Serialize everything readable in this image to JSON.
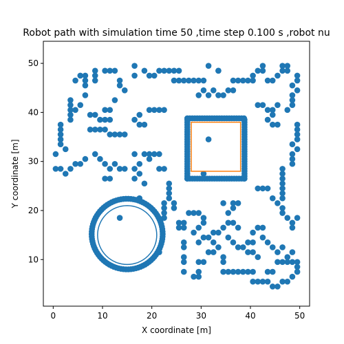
{
  "chart_data": {
    "type": "scatter",
    "title": "Robot path with simulation time 50 ,time step 0.100 s ,robot nu",
    "xlabel": "X coordinate [m]",
    "ylabel": "Y coordinate [m]",
    "xlim": [
      -2,
      52
    ],
    "ylim": [
      0.5,
      54.5
    ],
    "x_ticks": [
      0,
      10,
      20,
      30,
      40,
      50
    ],
    "y_ticks": [
      10,
      20,
      30,
      40,
      50
    ],
    "grid": false,
    "colors": {
      "obstacles": "#1f77b4",
      "path": "#1f77b4",
      "target": "#ff7f0e"
    },
    "series": [
      {
        "kind": "scatter",
        "points": [
          [
            0.5,
            28.5
          ],
          [
            1.5,
            28.5
          ],
          [
            2.5,
            27.5
          ],
          [
            3.5,
            28.5
          ],
          [
            4.5,
            29.5
          ],
          [
            5.5,
            29.5
          ],
          [
            6.5,
            30.5
          ],
          [
            0.5,
            31.5
          ],
          [
            2.5,
            32.5
          ],
          [
            1.5,
            33.5
          ],
          [
            1.5,
            34.5
          ],
          [
            1.5,
            35.5
          ],
          [
            1.5,
            36.5
          ],
          [
            1.5,
            37.5
          ],
          [
            3.5,
            42.5
          ],
          [
            3.5,
            41.5
          ],
          [
            3.5,
            40.5
          ],
          [
            3.5,
            39.5
          ],
          [
            3.5,
            38.5
          ],
          [
            4.5,
            40.5
          ],
          [
            5.5,
            41.5
          ],
          [
            6.5,
            43.5
          ],
          [
            4.5,
            46.5
          ],
          [
            5.5,
            47.5
          ],
          [
            6.5,
            46.5
          ],
          [
            6.5,
            47.5
          ],
          [
            6.5,
            45.5
          ],
          [
            8.5,
            46.5
          ],
          [
            8.5,
            47.5
          ],
          [
            8.5,
            48.5
          ],
          [
            10.5,
            48.5
          ],
          [
            11.5,
            48.5
          ],
          [
            12.5,
            48.5
          ],
          [
            13.5,
            46.5
          ],
          [
            13.5,
            45.5
          ],
          [
            14.5,
            44.5
          ],
          [
            16.5,
            47.5
          ],
          [
            16.5,
            49.5
          ],
          [
            18.5,
            48.5
          ],
          [
            19.5,
            47.5
          ],
          [
            20.5,
            47.5
          ],
          [
            21.5,
            48.5
          ],
          [
            22.5,
            48.5
          ],
          [
            23.5,
            48.5
          ],
          [
            24.5,
            48.5
          ],
          [
            25.5,
            48.5
          ],
          [
            24.5,
            46.5
          ],
          [
            25.5,
            46.5
          ],
          [
            26.5,
            46.5
          ],
          [
            27.5,
            46.5
          ],
          [
            28.5,
            46.5
          ],
          [
            29.5,
            46.5
          ],
          [
            30.5,
            46.5
          ],
          [
            29.5,
            43.5
          ],
          [
            30.5,
            44.5
          ],
          [
            31.5,
            43.5
          ],
          [
            31.5,
            49.5
          ],
          [
            33.5,
            48.5
          ],
          [
            33.5,
            48.5
          ],
          [
            32.5,
            44.5
          ],
          [
            33.5,
            43.5
          ],
          [
            34.5,
            43.5
          ],
          [
            35.5,
            44.5
          ],
          [
            36.5,
            44.5
          ],
          [
            36.5,
            46.5
          ],
          [
            37.5,
            46.5
          ],
          [
            38.5,
            46.5
          ],
          [
            39.5,
            46.5
          ],
          [
            40.5,
            46.5
          ],
          [
            40.5,
            47.5
          ],
          [
            41.5,
            48.5
          ],
          [
            42.5,
            49.5
          ],
          [
            42.5,
            48.5
          ],
          [
            43.5,
            46.5
          ],
          [
            44.5,
            46.5
          ],
          [
            45.5,
            47.5
          ],
          [
            46.5,
            48.5
          ],
          [
            46.5,
            49.5
          ],
          [
            47.5,
            48.5
          ],
          [
            47.5,
            49.5
          ],
          [
            48.5,
            45.5
          ],
          [
            49.5,
            47.5
          ],
          [
            49.5,
            46.5
          ],
          [
            49.5,
            44.5
          ],
          [
            48.5,
            43.5
          ],
          [
            48.5,
            42.5
          ],
          [
            48.5,
            41.5
          ],
          [
            47.5,
            40.5
          ],
          [
            45.5,
            41.5
          ],
          [
            44.5,
            40.5
          ],
          [
            41.5,
            41.5
          ],
          [
            42.5,
            41.5
          ],
          [
            43.5,
            40.5
          ],
          [
            10.5,
            40.5
          ],
          [
            11.5,
            40.5
          ],
          [
            12.5,
            42.5
          ],
          [
            7.5,
            39.5
          ],
          [
            8.5,
            39.5
          ],
          [
            9.5,
            38.5
          ],
          [
            10.5,
            38.5
          ],
          [
            11.5,
            38.5
          ],
          [
            7.5,
            36.5
          ],
          [
            8.5,
            36.5
          ],
          [
            9.5,
            36.5
          ],
          [
            10.5,
            36.5
          ],
          [
            11.5,
            35.5
          ],
          [
            12.5,
            35.5
          ],
          [
            13.5,
            35.5
          ],
          [
            14.5,
            35.5
          ],
          [
            16.5,
            38.5
          ],
          [
            17.5,
            37.5
          ],
          [
            18.5,
            37.5
          ],
          [
            17.5,
            39.5
          ],
          [
            19.5,
            40.5
          ],
          [
            20.5,
            40.5
          ],
          [
            21.5,
            40.5
          ],
          [
            22.5,
            40.5
          ],
          [
            18.5,
            31.5
          ],
          [
            19.5,
            31.5
          ],
          [
            20.5,
            31.5
          ],
          [
            21.5,
            31.5
          ],
          [
            19.5,
            30.5
          ],
          [
            17.5,
            29.5
          ],
          [
            16.5,
            28.5
          ],
          [
            17.5,
            27.5
          ],
          [
            16.5,
            26.5
          ],
          [
            18.5,
            25.5
          ],
          [
            21.5,
            28.5
          ],
          [
            22.5,
            28.5
          ],
          [
            8.5,
            31.5
          ],
          [
            9.5,
            30.5
          ],
          [
            10.5,
            29.5
          ],
          [
            11.5,
            28.5
          ],
          [
            12.5,
            29.5
          ],
          [
            13.5,
            28.5
          ],
          [
            10.5,
            26.5
          ],
          [
            11.5,
            26.5
          ],
          [
            14.5,
            28.5
          ],
          [
            23.5,
            25.5
          ],
          [
            23.5,
            24.5
          ],
          [
            23.5,
            23.5
          ],
          [
            23.5,
            22.5
          ],
          [
            22.5,
            21.5
          ],
          [
            22.5,
            20.5
          ],
          [
            22.5,
            19.5
          ],
          [
            22.5,
            18.5
          ],
          [
            24.5,
            21.5
          ],
          [
            24.5,
            20.5
          ],
          [
            25.5,
            17.5
          ],
          [
            25.5,
            16.5
          ],
          [
            26.5,
            17.5
          ],
          [
            26.5,
            16.5
          ],
          [
            26.5,
            13.5
          ],
          [
            26.5,
            12.5
          ],
          [
            26.5,
            10.5
          ],
          [
            26.5,
            9.5
          ],
          [
            26.5,
            7.5
          ],
          [
            27.5,
            19.5
          ],
          [
            28.5,
            19.5
          ],
          [
            29.5,
            19.5
          ],
          [
            30.5,
            18.5
          ],
          [
            30.5,
            17.5
          ],
          [
            29.5,
            16.5
          ],
          [
            28.5,
            15.5
          ],
          [
            29.5,
            13.5
          ],
          [
            30.5,
            14.5
          ],
          [
            31.5,
            14.5
          ],
          [
            29.5,
            9.5
          ],
          [
            30.5,
            9.5
          ],
          [
            29.5,
            7.5
          ],
          [
            28.5,
            6.5
          ],
          [
            29.5,
            6.5
          ],
          [
            31.5,
            11.5
          ],
          [
            32.5,
            11.5
          ],
          [
            33.5,
            12.5
          ],
          [
            32.5,
            13.5
          ],
          [
            32.5,
            15.5
          ],
          [
            33.5,
            15.5
          ],
          [
            34.5,
            16.5
          ],
          [
            35.5,
            17.5
          ],
          [
            36.5,
            17.5
          ],
          [
            37.5,
            16.5
          ],
          [
            35.5,
            14.5
          ],
          [
            36.5,
            13.5
          ],
          [
            37.5,
            12.5
          ],
          [
            38.5,
            12.5
          ],
          [
            39.5,
            13.5
          ],
          [
            34.5,
            10.5
          ],
          [
            34.5,
            9.5
          ],
          [
            34.5,
            21.5
          ],
          [
            36.5,
            21.5
          ],
          [
            37.5,
            21.5
          ],
          [
            35.5,
            19.5
          ],
          [
            36.5,
            20.5
          ],
          [
            34.5,
            7.5
          ],
          [
            35.5,
            7.5
          ],
          [
            36.5,
            7.5
          ],
          [
            37.5,
            7.5
          ],
          [
            38.5,
            7.5
          ],
          [
            39.5,
            7.5
          ],
          [
            40.5,
            7.5
          ],
          [
            39.5,
            11.5
          ],
          [
            40.5,
            11.5
          ],
          [
            41.5,
            10.5
          ],
          [
            40.5,
            13.5
          ],
          [
            40.5,
            15.5
          ],
          [
            41.5,
            16.5
          ],
          [
            42.5,
            16.5
          ],
          [
            42.5,
            14.5
          ],
          [
            43.5,
            13.5
          ],
          [
            44.5,
            12.5
          ],
          [
            45.5,
            11.5
          ],
          [
            46.5,
            12.5
          ],
          [
            45.5,
            9.5
          ],
          [
            46.5,
            9.5
          ],
          [
            47.5,
            9.5
          ],
          [
            48.5,
            9.5
          ],
          [
            49.5,
            9.5
          ],
          [
            47.5,
            10.5
          ],
          [
            48.5,
            11.5
          ],
          [
            49.5,
            8.5
          ],
          [
            49.5,
            7.5
          ],
          [
            48.5,
            6.5
          ],
          [
            47.5,
            5.5
          ],
          [
            46.5,
            5.5
          ],
          [
            45.5,
            4.5
          ],
          [
            44.5,
            4.5
          ],
          [
            43.5,
            5.5
          ],
          [
            42.5,
            5.5
          ],
          [
            41.5,
            5.5
          ],
          [
            40.5,
            5.5
          ],
          [
            43.5,
            7.5
          ],
          [
            44.5,
            7.5
          ],
          [
            41.5,
            24.5
          ],
          [
            42.5,
            24.5
          ],
          [
            43.5,
            24.5
          ],
          [
            44.5,
            22.5
          ],
          [
            45.5,
            21.5
          ],
          [
            46.5,
            20.5
          ],
          [
            46.5,
            19.5
          ],
          [
            47.5,
            18.5
          ],
          [
            48.5,
            17.5
          ],
          [
            48.5,
            16.5
          ],
          [
            49.5,
            18.5
          ],
          [
            46.5,
            22.5
          ],
          [
            46.5,
            23.5
          ],
          [
            46.5,
            24.5
          ],
          [
            46.5,
            25.5
          ],
          [
            46.5,
            26.5
          ],
          [
            46.5,
            27.5
          ],
          [
            46.5,
            28.5
          ],
          [
            48.5,
            29.5
          ],
          [
            48.5,
            30.5
          ],
          [
            48.5,
            31.5
          ],
          [
            48.5,
            33.5
          ],
          [
            49.5,
            34.5
          ],
          [
            49.5,
            35.5
          ],
          [
            49.5,
            36.5
          ],
          [
            49.5,
            37.5
          ],
          [
            49.5,
            32.5
          ],
          [
            45.5,
            37.5
          ],
          [
            44.5,
            37.5
          ],
          [
            43.5,
            38.5
          ],
          [
            44.5,
            39.5
          ],
          [
            21.5,
            11.5
          ],
          [
            17.5,
            22.5
          ],
          [
            13.5,
            18.5
          ],
          [
            30.5,
            27.5
          ],
          [
            31.5,
            34.5
          ],
          [
            16.5,
            31.5
          ]
        ]
      },
      {
        "kind": "circle",
        "cx": 15,
        "cy": 15.2,
        "r": 7.2
      },
      {
        "kind": "rect-path",
        "x0": 27.2,
        "x1": 38.8,
        "y0": 26.5,
        "y1": 38.8,
        "step": 0.5
      },
      {
        "kind": "line",
        "shape": "circle",
        "cx": 15,
        "cy": 15,
        "r": 6
      },
      {
        "kind": "line",
        "shape": "rect",
        "x0": 28,
        "x1": 38,
        "y0": 28,
        "y1": 38
      }
    ]
  }
}
